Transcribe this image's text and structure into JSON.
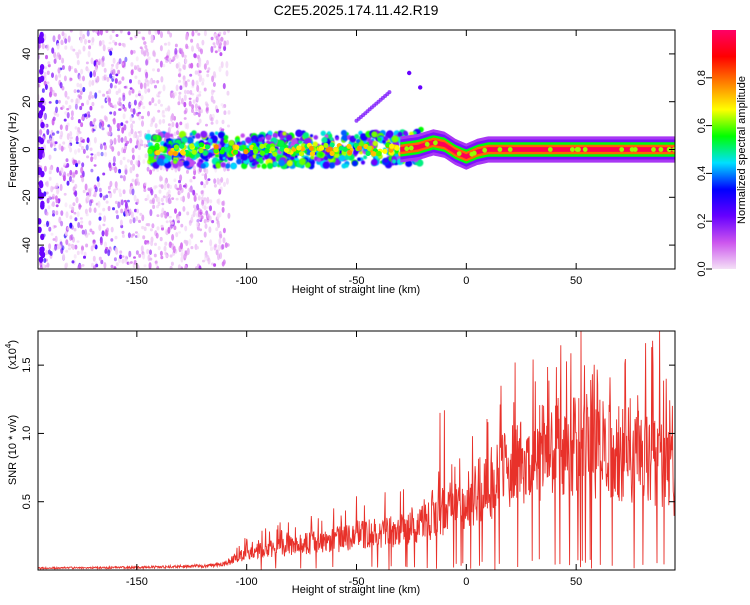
{
  "page_title": "C2E5.2025.174.11.42.R19",
  "chart_data": [
    {
      "type": "heatmap",
      "title": "C2E5.2025.174.11.42.R19",
      "xlabel": "Height of straight line (km)",
      "ylabel": "Frequency (Hz)",
      "xlim": [
        -195,
        95
      ],
      "ylim": [
        -50,
        50
      ],
      "x_ticks": [
        -150,
        -100,
        -50,
        0,
        50
      ],
      "y_ticks": [
        -40,
        -20,
        0,
        20,
        40
      ],
      "grid": false,
      "colorbar": {
        "label": "Normalized spectral amplitude",
        "range": [
          0,
          1
        ],
        "ticks": [
          "0.0",
          "0.2",
          "0.4",
          "0.6",
          "0.8"
        ],
        "colors": [
          "#f4e0f6",
          "#cc55ee",
          "#6600ff",
          "#0000ff",
          "#00e0ff",
          "#00ff00",
          "#ffff00",
          "#ff8000",
          "#ff0000",
          "#ff0066"
        ]
      },
      "regions": [
        {
          "name": "diffuse-noise",
          "x_range": [
            -195,
            -108
          ],
          "y_range": [
            -50,
            50
          ],
          "amplitude": 0.12
        },
        {
          "name": "signal-band",
          "x_range": [
            -145,
            -20
          ],
          "y_center": 0,
          "amplitude": 0.45
        },
        {
          "name": "signal-core",
          "x_range": [
            -30,
            95
          ],
          "y_center": 0,
          "amplitude": 0.95
        }
      ],
      "signal_center_hz": [
        {
          "x": -30,
          "y": 0
        },
        {
          "x": -22,
          "y": 1
        },
        {
          "x": -15,
          "y": 3
        },
        {
          "x": -10,
          "y": 2
        },
        {
          "x": -5,
          "y": -1
        },
        {
          "x": 0,
          "y": -3
        },
        {
          "x": 5,
          "y": -1
        },
        {
          "x": 10,
          "y": 0
        },
        {
          "x": 95,
          "y": 0
        }
      ],
      "streak": [
        {
          "x": -50,
          "y": 12
        },
        {
          "x": -35,
          "y": 24
        }
      ],
      "isolated_points": [
        {
          "x": -26,
          "y": 32
        },
        {
          "x": -21,
          "y": 26
        }
      ]
    },
    {
      "type": "line",
      "xlabel": "Height of straight line (km)",
      "ylabel": "SNR (10 * v/v)",
      "y_multiplier": "(x10",
      "y_multiplier_exp": "4",
      "xlim": [
        -195,
        95
      ],
      "ylim": [
        0,
        17500
      ],
      "x_ticks": [
        -150,
        -100,
        -50,
        0,
        50
      ],
      "y_ticks": [
        5000,
        10000,
        15000
      ],
      "y_tick_labels": [
        "0.5",
        "1.0",
        "1.5"
      ],
      "grid": false,
      "series": [
        {
          "color": "#e8312a",
          "envelope": [
            {
              "x": -195,
              "y": 150
            },
            {
              "x": -150,
              "y": 200
            },
            {
              "x": -120,
              "y": 300
            },
            {
              "x": -110,
              "y": 500
            },
            {
              "x": -100,
              "y": 1300
            },
            {
              "x": -90,
              "y": 1600
            },
            {
              "x": -80,
              "y": 1900
            },
            {
              "x": -70,
              "y": 2100
            },
            {
              "x": -60,
              "y": 2300
            },
            {
              "x": -50,
              "y": 2700
            },
            {
              "x": -40,
              "y": 2800
            },
            {
              "x": -30,
              "y": 3000
            },
            {
              "x": -20,
              "y": 3500
            },
            {
              "x": -10,
              "y": 4500
            },
            {
              "x": 0,
              "y": 5500
            },
            {
              "x": 10,
              "y": 6500
            },
            {
              "x": 20,
              "y": 7800
            },
            {
              "x": 30,
              "y": 9000
            },
            {
              "x": 40,
              "y": 9300
            },
            {
              "x": 50,
              "y": 9400
            },
            {
              "x": 60,
              "y": 9300
            },
            {
              "x": 70,
              "y": 9000
            },
            {
              "x": 80,
              "y": 8800
            },
            {
              "x": 90,
              "y": 8000
            },
            {
              "x": 95,
              "y": 7000
            }
          ],
          "peaks": [
            {
              "x": -50,
              "y": 5400
            },
            {
              "x": -37,
              "y": 5700
            },
            {
              "x": -12,
              "y": 11500
            },
            {
              "x": -10,
              "y": 11700
            },
            {
              "x": 63,
              "y": 11000
            },
            {
              "x": 78,
              "y": 12800
            },
            {
              "x": 85,
              "y": 15000
            },
            {
              "x": 88,
              "y": 17500
            },
            {
              "x": 91,
              "y": 14000
            }
          ]
        }
      ]
    }
  ]
}
